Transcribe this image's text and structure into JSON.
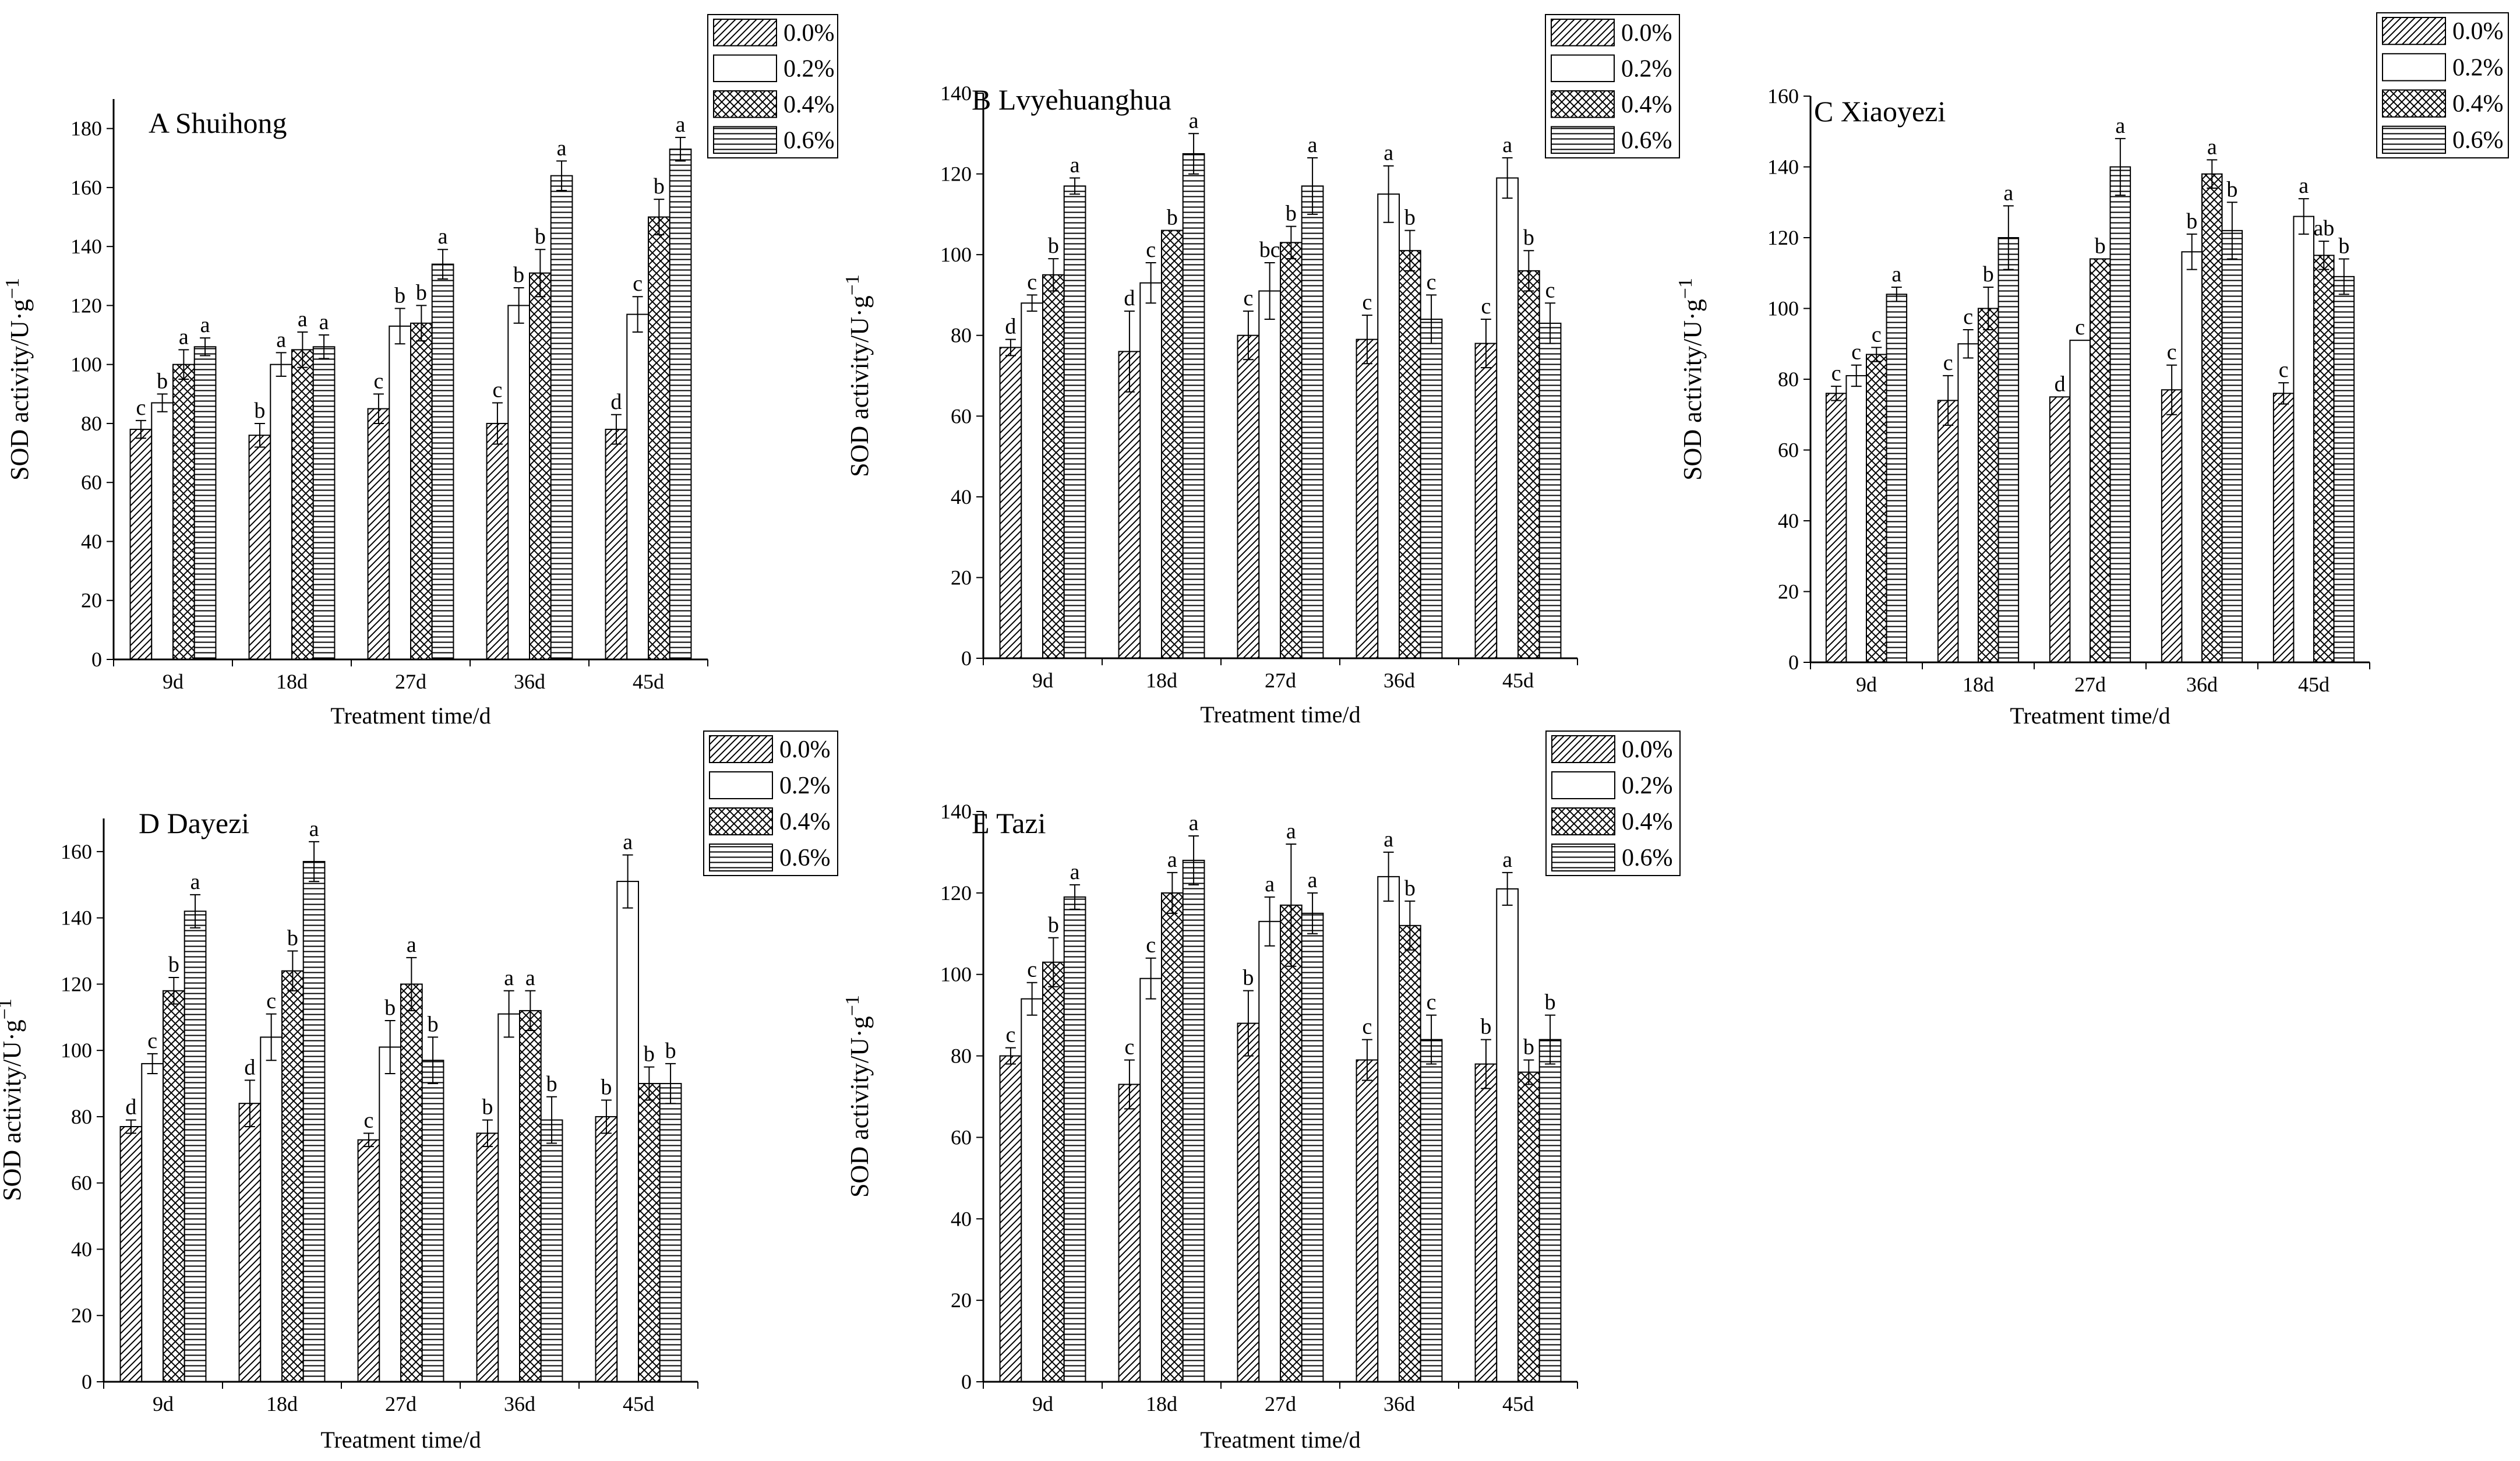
{
  "figure": {
    "colors": {
      "ink": "#000000",
      "paper": "#ffffff"
    },
    "legend_entries": [
      {
        "label": "0.0%",
        "pattern": "diagonal-hatch"
      },
      {
        "label": "0.2%",
        "pattern": "blank"
      },
      {
        "label": "0.4%",
        "pattern": "cross-hatch"
      },
      {
        "label": "0.6%",
        "pattern": "horizontal-lines"
      }
    ]
  },
  "chart_data": [
    {
      "type": "bar",
      "title": "A   Shuihong",
      "xlabel": "Treatment time/d",
      "ylabel": "SOD activity/U·g",
      "ylabel_sup": "−1",
      "categories": [
        "9d",
        "18d",
        "27d",
        "36d",
        "45d"
      ],
      "ylim": [
        0,
        190
      ],
      "yticks": [
        0,
        20,
        40,
        60,
        80,
        100,
        120,
        140,
        160,
        180
      ],
      "series": [
        {
          "name": "0.0%",
          "values": [
            78,
            76,
            85,
            80,
            78
          ],
          "errors": [
            3,
            4,
            5,
            7,
            5
          ],
          "labels": [
            "c",
            "b",
            "c",
            "c",
            "d"
          ]
        },
        {
          "name": "0.2%",
          "values": [
            87,
            100,
            113,
            120,
            117
          ],
          "errors": [
            3,
            4,
            6,
            6,
            6
          ],
          "labels": [
            "b",
            "a",
            "b",
            "b",
            "c"
          ]
        },
        {
          "name": "0.4%",
          "values": [
            100,
            105,
            114,
            131,
            150
          ],
          "errors": [
            5,
            6,
            6,
            8,
            6
          ],
          "labels": [
            "a",
            "a",
            "b",
            "b",
            "b"
          ]
        },
        {
          "name": "0.6%",
          "values": [
            106,
            106,
            134,
            164,
            173
          ],
          "errors": [
            3,
            4,
            5,
            5,
            4
          ],
          "labels": [
            "a",
            "a",
            "a",
            "a",
            "a"
          ]
        }
      ]
    },
    {
      "type": "bar",
      "title": "B   Lvyehuanghua",
      "xlabel": "Treatment time/d",
      "ylabel": "SOD activity/U·g",
      "ylabel_sup": "−1",
      "categories": [
        "9d",
        "18d",
        "27d",
        "36d",
        "45d"
      ],
      "ylim": [
        0,
        140
      ],
      "yticks": [
        0,
        20,
        40,
        60,
        80,
        100,
        120,
        140
      ],
      "series": [
        {
          "name": "0.0%",
          "values": [
            77,
            76,
            80,
            79,
            78
          ],
          "errors": [
            2,
            10,
            6,
            6,
            6
          ],
          "labels": [
            "d",
            "d",
            "c",
            "c",
            "c"
          ]
        },
        {
          "name": "0.2%",
          "values": [
            88,
            93,
            91,
            115,
            119
          ],
          "errors": [
            2,
            5,
            7,
            7,
            5
          ],
          "labels": [
            "c",
            "c",
            "bc",
            "a",
            "a"
          ]
        },
        {
          "name": "0.4%",
          "values": [
            95,
            106,
            103,
            101,
            96
          ],
          "errors": [
            4,
            0,
            4,
            5,
            5
          ],
          "labels": [
            "b",
            "b",
            "b",
            "b",
            "b"
          ]
        },
        {
          "name": "0.6%",
          "values": [
            117,
            125,
            117,
            84,
            83
          ],
          "errors": [
            2,
            5,
            7,
            6,
            5
          ],
          "labels": [
            "a",
            "a",
            "a",
            "c",
            "c"
          ]
        }
      ]
    },
    {
      "type": "bar",
      "title": "C   Xiaoyezi",
      "xlabel": "Treatment time/d",
      "ylabel": "SOD activity/U·g",
      "ylabel_sup": "−1",
      "categories": [
        "9d",
        "18d",
        "27d",
        "36d",
        "45d"
      ],
      "ylim": [
        0,
        160
      ],
      "yticks": [
        0,
        20,
        40,
        60,
        80,
        100,
        120,
        140,
        160
      ],
      "series": [
        {
          "name": "0.0%",
          "values": [
            76,
            74,
            75,
            77,
            76
          ],
          "errors": [
            2,
            7,
            0,
            7,
            3
          ],
          "labels": [
            "c",
            "c",
            "d",
            "c",
            "c"
          ]
        },
        {
          "name": "0.2%",
          "values": [
            81,
            90,
            91,
            116,
            126
          ],
          "errors": [
            3,
            4,
            0,
            5,
            5
          ],
          "labels": [
            "c",
            "c",
            "c",
            "b",
            "a"
          ]
        },
        {
          "name": "0.4%",
          "values": [
            87,
            100,
            114,
            138,
            115
          ],
          "errors": [
            2,
            6,
            0,
            4,
            4
          ],
          "labels": [
            "c",
            "b",
            "b",
            "a",
            "ab"
          ]
        },
        {
          "name": "0.6%",
          "values": [
            104,
            120,
            140,
            122,
            109
          ],
          "errors": [
            2,
            9,
            8,
            8,
            5
          ],
          "labels": [
            "a",
            "a",
            "a",
            "b",
            "b"
          ]
        }
      ]
    },
    {
      "type": "bar",
      "title": "D   Dayezi",
      "xlabel": "Treatment time/d",
      "ylabel": "SOD activity/U·g",
      "ylabel_sup": "−1",
      "categories": [
        "9d",
        "18d",
        "27d",
        "36d",
        "45d"
      ],
      "ylim": [
        0,
        170
      ],
      "yticks": [
        0,
        20,
        40,
        60,
        80,
        100,
        120,
        140,
        160
      ],
      "series": [
        {
          "name": "0.0%",
          "values": [
            77,
            84,
            73,
            75,
            80
          ],
          "errors": [
            2,
            7,
            2,
            4,
            5
          ],
          "labels": [
            "d",
            "d",
            "c",
            "b",
            "b"
          ]
        },
        {
          "name": "0.2%",
          "values": [
            96,
            104,
            101,
            111,
            151
          ],
          "errors": [
            3,
            7,
            8,
            7,
            8
          ],
          "labels": [
            "c",
            "c",
            "b",
            "a",
            "a"
          ]
        },
        {
          "name": "0.4%",
          "values": [
            118,
            124,
            120,
            112,
            90
          ],
          "errors": [
            4,
            6,
            8,
            6,
            5
          ],
          "labels": [
            "b",
            "b",
            "a",
            "a",
            "b"
          ]
        },
        {
          "name": "0.6%",
          "values": [
            142,
            157,
            97,
            79,
            90
          ],
          "errors": [
            5,
            6,
            7,
            7,
            6
          ],
          "labels": [
            "a",
            "a",
            "b",
            "b",
            "b"
          ]
        }
      ]
    },
    {
      "type": "bar",
      "title": "E   Tazi",
      "xlabel": "Treatment time/d",
      "ylabel": "SOD activity/U·g",
      "ylabel_sup": "−1",
      "categories": [
        "9d",
        "18d",
        "27d",
        "36d",
        "45d"
      ],
      "ylim": [
        0,
        140
      ],
      "yticks": [
        0,
        20,
        40,
        60,
        80,
        100,
        120,
        140
      ],
      "series": [
        {
          "name": "0.0%",
          "values": [
            80,
            73,
            88,
            79,
            78
          ],
          "errors": [
            2,
            6,
            8,
            5,
            6
          ],
          "labels": [
            "c",
            "c",
            "b",
            "c",
            "b"
          ]
        },
        {
          "name": "0.2%",
          "values": [
            94,
            99,
            113,
            124,
            121
          ],
          "errors": [
            4,
            5,
            6,
            6,
            4
          ],
          "labels": [
            "c",
            "c",
            "a",
            "a",
            "a"
          ]
        },
        {
          "name": "0.4%",
          "values": [
            103,
            120,
            117,
            112,
            76
          ],
          "errors": [
            6,
            5,
            15,
            6,
            3
          ],
          "labels": [
            "b",
            "a",
            "a",
            "b",
            "b"
          ]
        },
        {
          "name": "0.6%",
          "values": [
            119,
            128,
            115,
            84,
            84
          ],
          "errors": [
            3,
            6,
            5,
            6,
            6
          ],
          "labels": [
            "a",
            "a",
            "a",
            "c",
            "b"
          ]
        }
      ]
    }
  ]
}
